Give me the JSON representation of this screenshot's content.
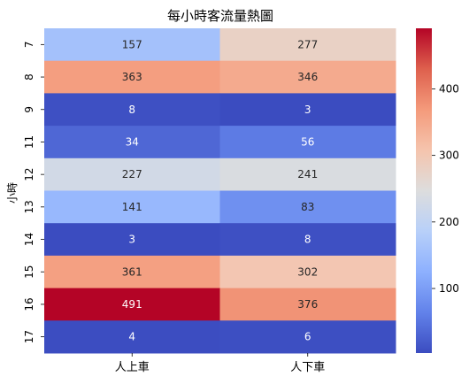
{
  "chart_data": {
    "type": "heatmap",
    "title": "每小時客流量熱圖",
    "xlabel": "",
    "ylabel": "小時",
    "columns": [
      "人上車",
      "人下車"
    ],
    "rows": [
      "7",
      "8",
      "9",
      "11",
      "12",
      "13",
      "14",
      "15",
      "16",
      "17"
    ],
    "values": [
      [
        157,
        277
      ],
      [
        363,
        346
      ],
      [
        8,
        3
      ],
      [
        34,
        56
      ],
      [
        227,
        241
      ],
      [
        141,
        83
      ],
      [
        3,
        8
      ],
      [
        361,
        302
      ],
      [
        491,
        376
      ],
      [
        4,
        6
      ]
    ],
    "colormap": "coolwarm",
    "vmin": 3,
    "vmax": 491,
    "colorbar_ticks": [
      100,
      200,
      300,
      400
    ],
    "annotations_shown": true,
    "grid": false,
    "colorbar_position": "right"
  }
}
